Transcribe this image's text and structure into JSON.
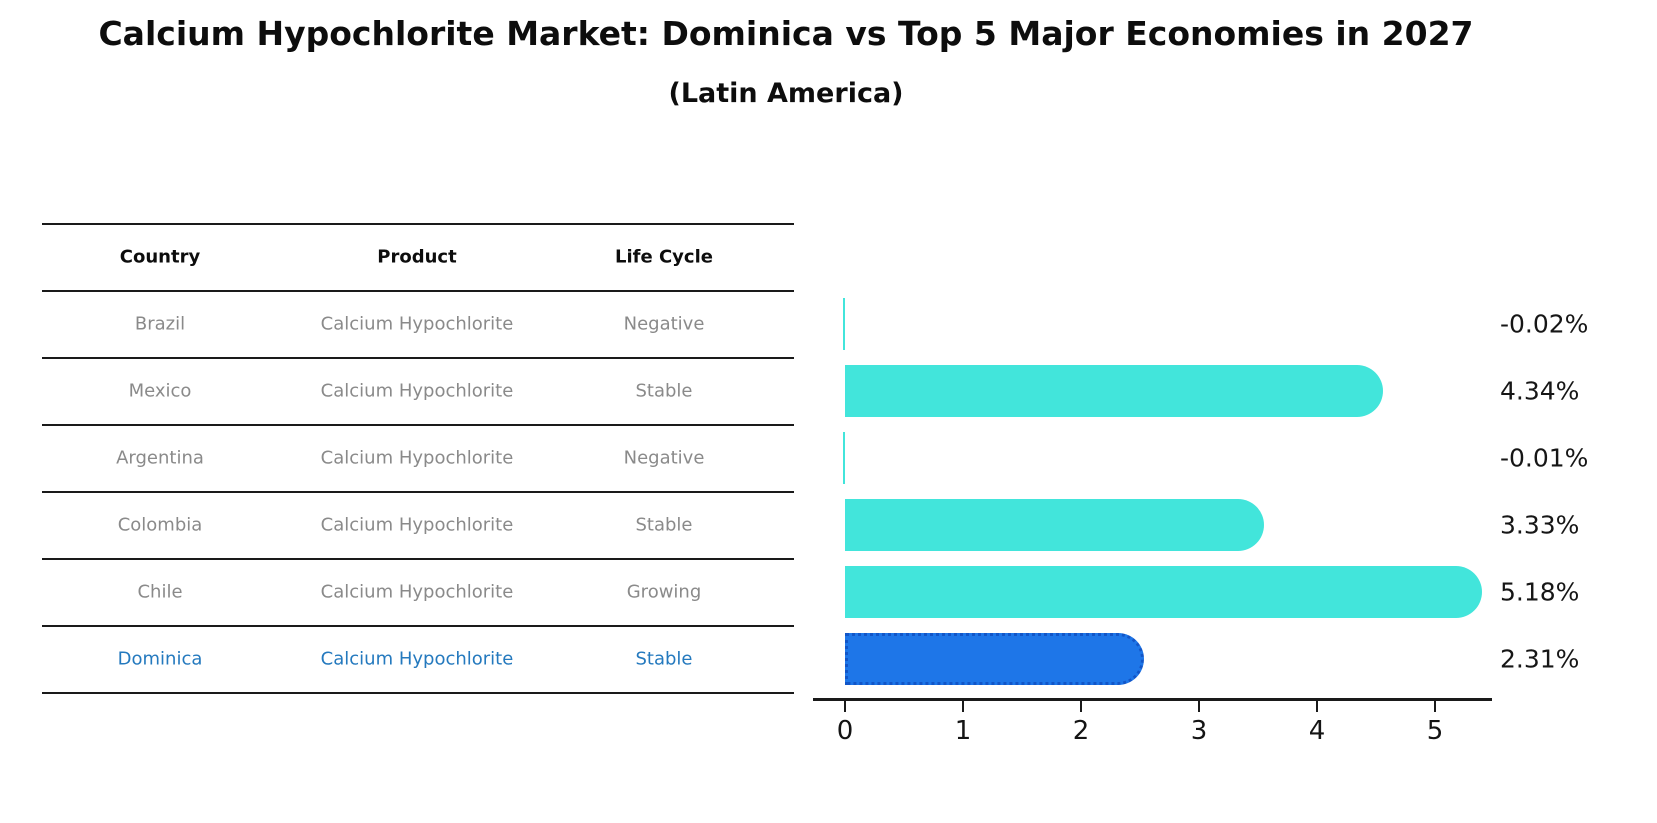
{
  "title": "Calcium Hypochlorite Market: Dominica vs Top 5 Major Economies in 2027",
  "subtitle": "(Latin America)",
  "table": {
    "headers": [
      "Country",
      "Product",
      "Life Cycle"
    ],
    "rows": [
      {
        "country": "Brazil",
        "product": "Calcium Hypochlorite",
        "life_cycle": "Negative",
        "highlight": false
      },
      {
        "country": "Mexico",
        "product": "Calcium Hypochlorite",
        "life_cycle": "Stable",
        "highlight": false
      },
      {
        "country": "Argentina",
        "product": "Calcium Hypochlorite",
        "life_cycle": "Negative",
        "highlight": false
      },
      {
        "country": "Colombia",
        "product": "Calcium Hypochlorite",
        "life_cycle": "Stable",
        "highlight": false
      },
      {
        "country": "Chile",
        "product": "Calcium Hypochlorite",
        "life_cycle": "Growing",
        "highlight": false
      },
      {
        "country": "Dominica",
        "product": "Calcium Hypochlorite",
        "life_cycle": "Stable",
        "highlight": true
      }
    ]
  },
  "chart_data": {
    "type": "bar",
    "orientation": "horizontal",
    "title": "Calcium Hypochlorite Market: Dominica vs Top 5 Major Economies in 2027",
    "subtitle": "(Latin America)",
    "categories": [
      "Brazil",
      "Mexico",
      "Argentina",
      "Colombia",
      "Chile",
      "Dominica"
    ],
    "values": [
      -0.02,
      4.34,
      -0.01,
      3.33,
      5.18,
      2.31
    ],
    "value_labels": [
      "-0.02%",
      "4.34%",
      "-0.01%",
      "3.33%",
      "5.18%",
      "2.31%"
    ],
    "x_ticks": [
      "0",
      "1",
      "2",
      "3",
      "4",
      "5"
    ],
    "xlim": [
      0,
      5.5
    ],
    "grid": false,
    "legend": "none",
    "bar_color": "#42e5db",
    "highlight_bar_color": "#1e76e8",
    "highlight_bar_edge_color": "#1256c8",
    "highlight_text_color": "#2479be",
    "row_text_color": "#8a8a8a",
    "highlight_index": 5
  }
}
